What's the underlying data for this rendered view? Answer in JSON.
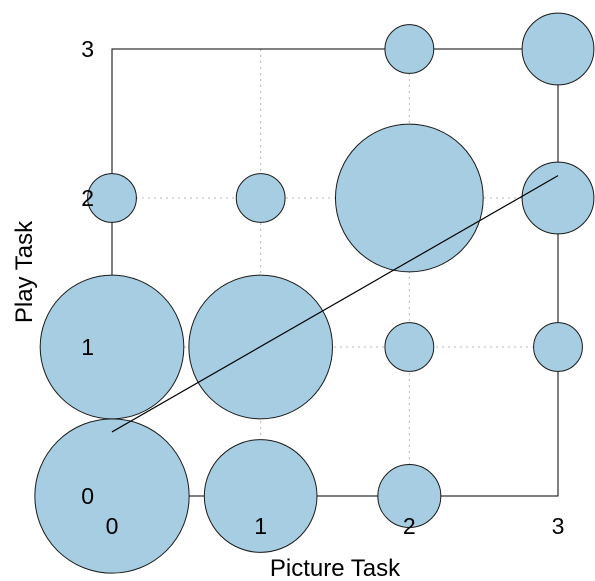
{
  "chart_data": {
    "type": "scatter",
    "subtype": "bubble",
    "title": "",
    "xlabel": "Picture Task",
    "ylabel": "Play Task",
    "xlim": [
      0,
      3
    ],
    "ylim": [
      0,
      3
    ],
    "xticks": [
      "0",
      "1",
      "2",
      "3"
    ],
    "yticks": [
      "0",
      "1",
      "2",
      "3"
    ],
    "grid": true,
    "bubble_color": "#a6cde2",
    "points": [
      {
        "x": 0,
        "y": 0,
        "size": 6
      },
      {
        "x": 1,
        "y": 0,
        "size": 3.2
      },
      {
        "x": 2,
        "y": 0,
        "size": 1
      },
      {
        "x": 0,
        "y": 1,
        "size": 5.2
      },
      {
        "x": 1,
        "y": 1,
        "size": 5.2
      },
      {
        "x": 2,
        "y": 1,
        "size": 0.6
      },
      {
        "x": 3,
        "y": 1,
        "size": 0.6
      },
      {
        "x": 0,
        "y": 2,
        "size": 0.6
      },
      {
        "x": 1,
        "y": 2,
        "size": 0.6
      },
      {
        "x": 2,
        "y": 2,
        "size": 5.5
      },
      {
        "x": 3,
        "y": 2,
        "size": 1.3
      },
      {
        "x": 2,
        "y": 3,
        "size": 0.6
      },
      {
        "x": 3,
        "y": 3,
        "size": 1.3
      }
    ],
    "trend_line": {
      "x": [
        0,
        3
      ],
      "y": [
        0.43,
        2.15
      ]
    }
  }
}
